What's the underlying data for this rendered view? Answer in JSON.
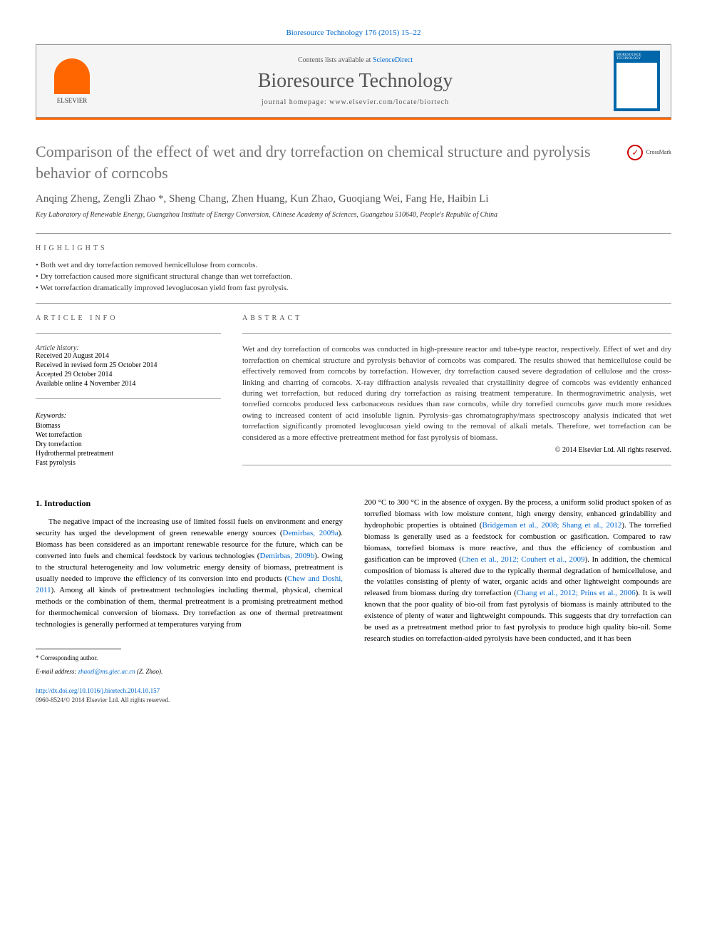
{
  "journal_ref": "Bioresource Technology 176 (2015) 15–22",
  "header": {
    "contents_text": "Contents lists available at ",
    "sciencedirect": "ScienceDirect",
    "journal_name": "Bioresource Technology",
    "homepage_label": "journal homepage: ",
    "homepage_url": "www.elsevier.com/locate/biortech",
    "publisher": "ELSEVIER"
  },
  "crossmark": "CrossMark",
  "title": "Comparison of the effect of wet and dry torrefaction on chemical structure and pyrolysis behavior of corncobs",
  "authors": "Anqing Zheng, Zengli Zhao *, Sheng Chang, Zhen Huang, Kun Zhao, Guoqiang Wei, Fang He, Haibin Li",
  "affiliation": "Key Laboratory of Renewable Energy, Guangzhou Institute of Energy Conversion, Chinese Academy of Sciences, Guangzhou 510640, People's Republic of China",
  "highlights_label": "HIGHLIGHTS",
  "highlights": [
    "Both wet and dry torrefaction removed hemicellulose from corncobs.",
    "Dry torrefaction caused more significant structural change than wet torrefaction.",
    "Wet torrefaction dramatically improved levoglucosan yield from fast pyrolysis."
  ],
  "article_info_label": "ARTICLE INFO",
  "abstract_label": "ABSTRACT",
  "history_label": "Article history:",
  "history": [
    "Received 20 August 2014",
    "Received in revised form 25 October 2014",
    "Accepted 29 October 2014",
    "Available online 4 November 2014"
  ],
  "keywords_label": "Keywords:",
  "keywords": [
    "Biomass",
    "Wet torrefaction",
    "Dry torrefaction",
    "Hydrothermal pretreatment",
    "Fast pyrolysis"
  ],
  "abstract": "Wet and dry torrefaction of corncobs was conducted in high-pressure reactor and tube-type reactor, respectively. Effect of wet and dry torrefaction on chemical structure and pyrolysis behavior of corncobs was compared. The results showed that hemicellulose could be effectively removed from corncobs by torrefaction. However, dry torrefaction caused severe degradation of cellulose and the cross-linking and charring of corncobs. X-ray diffraction analysis revealed that crystallinity degree of corncobs was evidently enhanced during wet torrefaction, but reduced during dry torrefaction as raising treatment temperature. In thermogravimetric analysis, wet torrefied corncobs produced less carbonaceous residues than raw corncobs, while dry torrefied corncobs gave much more residues owing to increased content of acid insoluble lignin. Pyrolysis–gas chromatography/mass spectroscopy analysis indicated that wet torrefaction significantly promoted levoglucosan yield owing to the removal of alkali metals. Therefore, wet torrefaction can be considered as a more effective pretreatment method for fast pyrolysis of biomass.",
  "copyright": "© 2014 Elsevier Ltd. All rights reserved.",
  "intro_heading": "1. Introduction",
  "intro_col1_p1a": "The negative impact of the increasing use of limited fossil fuels on environment and energy security has urged the development of green renewable energy sources (",
  "intro_col1_ref1": "Demirbas, 2009a",
  "intro_col1_p1b": "). Biomass has been considered as an important renewable resource for the future, which can be converted into fuels and chemical feedstock by various technologies (",
  "intro_col1_ref2": "Demirbas, 2009b",
  "intro_col1_p1c": "). Owing to the structural heterogeneity and low volumetric energy density of biomass, pretreatment is usually needed to improve the efficiency of its conversion into end products (",
  "intro_col1_ref3": "Chew and Doshi, 2011",
  "intro_col1_p1d": "). Among all kinds of pretreatment technologies including thermal, physical, chemical methods or the combination of them, thermal pretreatment is a promising pretreatment method for thermochemical conversion of biomass. Dry torrefaction as one of thermal pretreatment technologies is generally performed at temperatures varying from",
  "intro_col2_p1a": "200 °C to 300 °C in the absence of oxygen. By the process, a uniform solid product spoken of as torrefied biomass with low moisture content, high energy density, enhanced grindability and hydrophobic properties is obtained (",
  "intro_col2_ref1": "Bridgeman et al., 2008; Shang et al., 2012",
  "intro_col2_p1b": "). The torrefied biomass is generally used as a feedstock for combustion or gasification. Compared to raw biomass, torrefied biomass is more reactive, and thus the efficiency of combustion and gasification can be improved (",
  "intro_col2_ref2": "Chen et al., 2012; Couhert et al., 2009",
  "intro_col2_p1c": "). In addition, the chemical composition of biomass is altered due to the typically thermal degradation of hemicellulose, and the volatiles consisting of plenty of water, organic acids and other lightweight compounds are released from biomass during dry torrefaction (",
  "intro_col2_ref3": "Chang et al., 2012; Prins et al., 2006",
  "intro_col2_p1d": "). It is well known that the poor quality of bio-oil from fast pyrolysis of biomass is mainly attributed to the existence of plenty of water and lightweight compounds. This suggests that dry torrefaction can be used as a pretreatment method prior to fast pyrolysis to produce high quality bio-oil. Some research studies on torrefaction-aided pyrolysis have been conducted, and it has been",
  "footer": {
    "corr_label": "* Corresponding author.",
    "email_label": "E-mail address: ",
    "email": "zhaozl@ms.giec.ac.cn",
    "email_name": " (Z. Zhao).",
    "doi": "http://dx.doi.org/10.1016/j.biortech.2014.10.157",
    "issn": "0960-8524/© 2014 Elsevier Ltd. All rights reserved."
  }
}
